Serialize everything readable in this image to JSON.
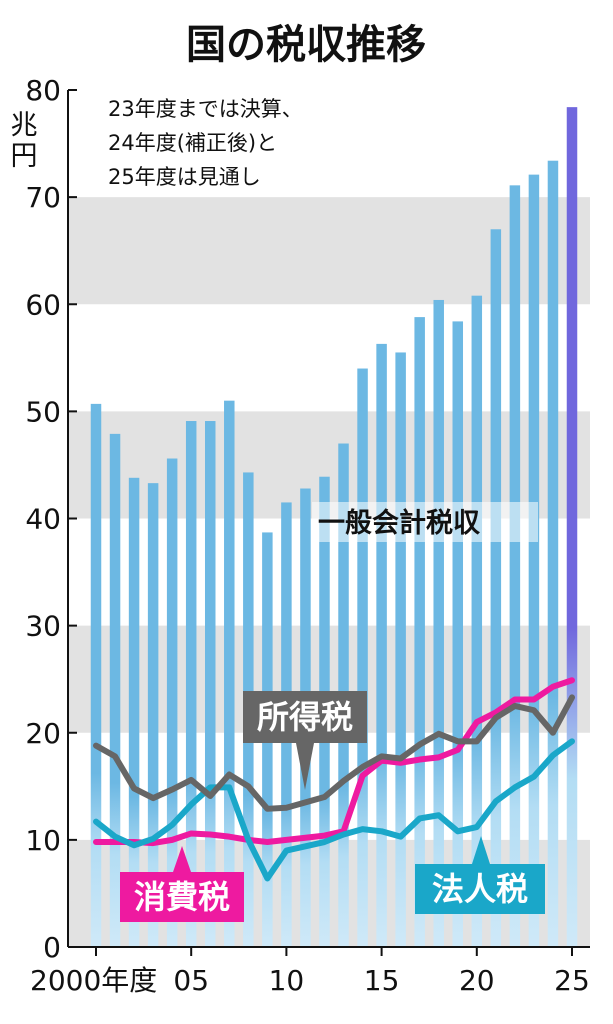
{
  "chart_data": {
    "type": "bar",
    "title": "国の税収推移",
    "unit": [
      "兆",
      "円"
    ],
    "note": [
      "23年度までは決算、",
      "24年度(補正後)と",
      "25年度は見通し"
    ],
    "ylim": [
      0,
      80
    ],
    "yticks": [
      "0",
      "10",
      "20",
      "30",
      "40",
      "50",
      "60",
      "70",
      "80"
    ],
    "ytick_values": [
      0,
      10,
      20,
      30,
      40,
      50,
      60,
      70,
      80
    ],
    "x": [
      2000,
      2001,
      2002,
      2003,
      2004,
      2005,
      2006,
      2007,
      2008,
      2009,
      2010,
      2011,
      2012,
      2013,
      2014,
      2015,
      2016,
      2017,
      2018,
      2019,
      2020,
      2021,
      2022,
      2023,
      2024,
      2025
    ],
    "xticks": [
      {
        "label": "2000年度",
        "year": 2000
      },
      {
        "label": "05",
        "year": 2005
      },
      {
        "label": "10",
        "year": 2010
      },
      {
        "label": "15",
        "year": 2015
      },
      {
        "label": "20",
        "year": 2020
      },
      {
        "label": "25",
        "year": 2025
      }
    ],
    "bars": {
      "name": "一般会計税収",
      "color": "#6cb8e3",
      "highlight_color": "#7067dd",
      "values": [
        50.7,
        47.9,
        43.8,
        43.3,
        45.6,
        49.1,
        49.1,
        51.0,
        44.3,
        38.7,
        41.5,
        42.8,
        43.9,
        47.0,
        54.0,
        56.3,
        55.5,
        58.8,
        60.4,
        58.4,
        60.8,
        67.0,
        71.1,
        72.1,
        73.4,
        78.4
      ]
    },
    "series": [
      {
        "name": "所得税",
        "color": "#666666",
        "label_bg": "#666666",
        "values": [
          18.8,
          17.8,
          14.8,
          13.9,
          14.7,
          15.6,
          14.1,
          16.1,
          15.0,
          12.9,
          13.0,
          13.5,
          14.0,
          15.5,
          16.8,
          17.8,
          17.6,
          18.9,
          19.9,
          19.2,
          19.2,
          21.4,
          22.5,
          22.1,
          20.0,
          23.3
        ]
      },
      {
        "name": "法人税",
        "color": "#1aa7c9",
        "label_bg": "#1aa7c9",
        "values": [
          11.7,
          10.3,
          9.5,
          10.1,
          11.4,
          13.3,
          14.9,
          14.9,
          10.0,
          6.4,
          9.0,
          9.4,
          9.8,
          10.5,
          11.0,
          10.8,
          10.3,
          12.0,
          12.3,
          10.8,
          11.2,
          13.6,
          14.9,
          15.9,
          17.9,
          19.2
        ]
      },
      {
        "name": "消費税",
        "color": "#ee1aa0",
        "label_bg": "#ee1aa0",
        "values": [
          9.8,
          9.8,
          9.8,
          9.7,
          10.0,
          10.6,
          10.5,
          10.3,
          10.0,
          9.8,
          10.0,
          10.2,
          10.4,
          10.8,
          16.0,
          17.4,
          17.2,
          17.5,
          17.7,
          18.4,
          21.0,
          21.9,
          23.1,
          23.1,
          24.3,
          24.9
        ]
      }
    ]
  }
}
